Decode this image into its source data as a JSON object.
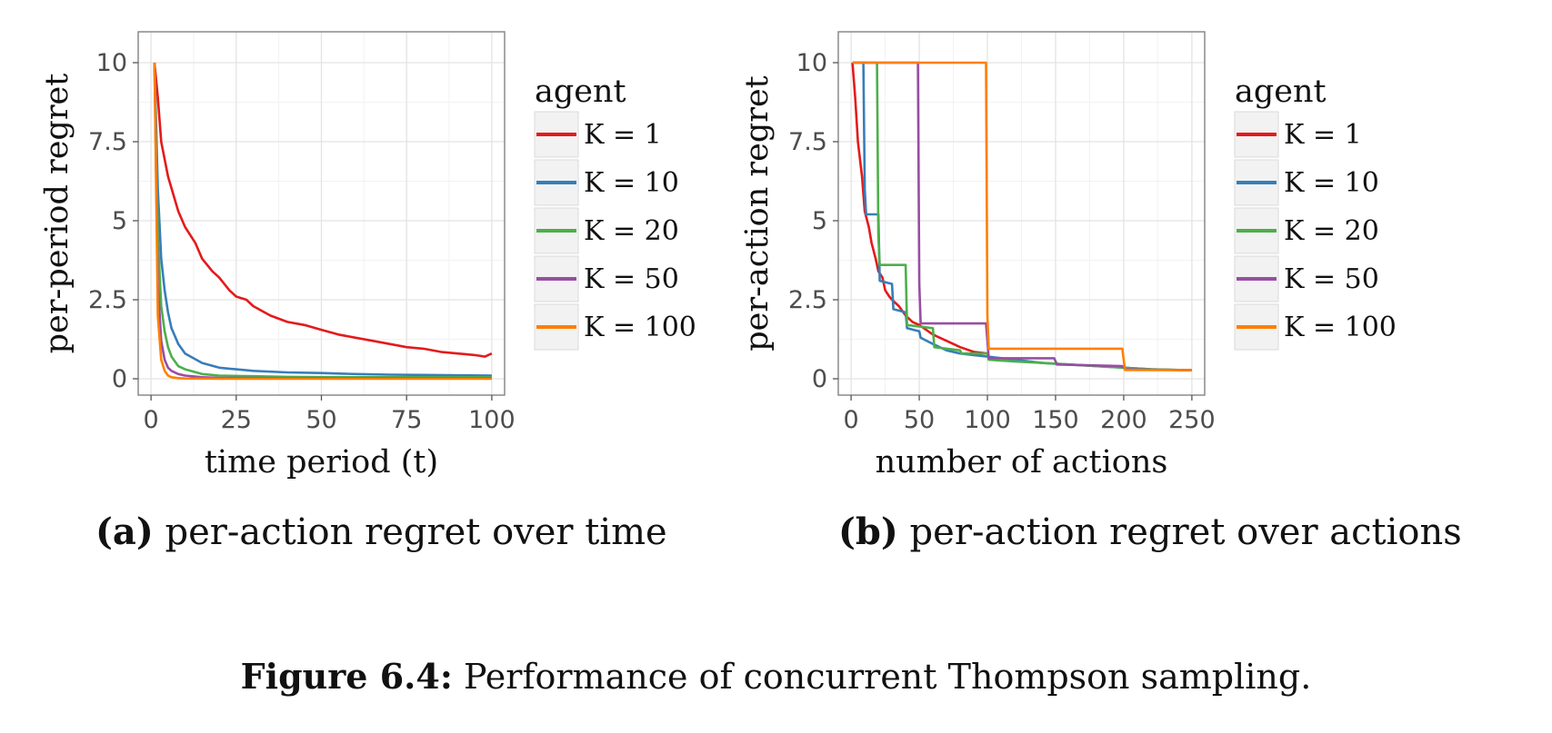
{
  "figure_caption": {
    "label": "Figure 6.4:",
    "text": " Performance of concurrent Thompson sampling."
  },
  "panels": [
    {
      "label": "(a)",
      "text": " per-action regret over time"
    },
    {
      "label": "(b)",
      "text": " per-action regret over actions"
    }
  ],
  "chart_data": [
    {
      "type": "line",
      "xlabel": "time period (t)",
      "ylabel": "per-period regret",
      "xlim": [
        0,
        100
      ],
      "ylim": [
        0,
        10
      ],
      "xticks": [
        "0",
        "25",
        "50",
        "75",
        "100"
      ],
      "yticks": [
        "0",
        "2.5",
        "5",
        "7.5",
        "10"
      ],
      "grid": true,
      "legend": {
        "title": "agent",
        "position": "right"
      },
      "series": [
        {
          "name": "K = 1",
          "color": "#e41a1c",
          "x": [
            1,
            2,
            3,
            5,
            8,
            10,
            13,
            15,
            18,
            20,
            23,
            25,
            28,
            30,
            35,
            40,
            45,
            50,
            55,
            60,
            65,
            70,
            75,
            80,
            85,
            90,
            95,
            98,
            100
          ],
          "y": [
            10.0,
            8.9,
            7.5,
            6.4,
            5.3,
            4.8,
            4.3,
            3.8,
            3.4,
            3.2,
            2.8,
            2.6,
            2.5,
            2.3,
            2.0,
            1.8,
            1.7,
            1.55,
            1.4,
            1.3,
            1.2,
            1.1,
            1.0,
            0.95,
            0.85,
            0.8,
            0.75,
            0.7,
            0.8
          ]
        },
        {
          "name": "K = 10",
          "color": "#377eb8",
          "x": [
            1,
            2,
            3,
            4,
            5,
            6,
            8,
            10,
            15,
            20,
            25,
            30,
            40,
            50,
            60,
            70,
            80,
            90,
            100
          ],
          "y": [
            10.0,
            6.0,
            3.8,
            2.8,
            2.1,
            1.6,
            1.1,
            0.8,
            0.5,
            0.35,
            0.3,
            0.25,
            0.2,
            0.18,
            0.15,
            0.13,
            0.12,
            0.11,
            0.1
          ]
        },
        {
          "name": "K = 20",
          "color": "#4daf4a",
          "x": [
            1,
            2,
            3,
            4,
            5,
            6,
            8,
            10,
            15,
            20,
            30,
            40,
            60,
            80,
            100
          ],
          "y": [
            10.0,
            4.5,
            2.3,
            1.5,
            1.0,
            0.7,
            0.4,
            0.3,
            0.15,
            0.1,
            0.08,
            0.06,
            0.05,
            0.05,
            0.05
          ]
        },
        {
          "name": "K = 50",
          "color": "#984ea3",
          "x": [
            1,
            2,
            3,
            4,
            5,
            6,
            8,
            10,
            15,
            20,
            40,
            60,
            80,
            100
          ],
          "y": [
            10.0,
            3.0,
            1.2,
            0.6,
            0.35,
            0.25,
            0.15,
            0.1,
            0.05,
            0.03,
            0.02,
            0.02,
            0.02,
            0.02
          ]
        },
        {
          "name": "K = 100",
          "color": "#ff7f00",
          "x": [
            1,
            2,
            3,
            4,
            5,
            6,
            8,
            10,
            20,
            50,
            100
          ],
          "y": [
            10.0,
            2.0,
            0.6,
            0.25,
            0.1,
            0.05,
            0.02,
            0.01,
            0.0,
            0.0,
            0.0
          ]
        }
      ]
    },
    {
      "type": "line",
      "xlabel": "number of actions",
      "ylabel": "per-action regret",
      "xlim": [
        0,
        250
      ],
      "ylim": [
        0,
        10
      ],
      "xticks": [
        "0",
        "50",
        "100",
        "150",
        "200",
        "250"
      ],
      "yticks": [
        "0",
        "2.5",
        "5",
        "7.5",
        "10"
      ],
      "grid": true,
      "legend": {
        "title": "agent",
        "position": "right"
      },
      "series": [
        {
          "name": "K = 1",
          "color": "#e41a1c",
          "x": [
            1,
            3,
            5,
            8,
            10,
            13,
            15,
            18,
            20,
            23,
            25,
            28,
            30,
            35,
            40,
            45,
            50,
            55,
            60,
            65,
            70,
            80,
            90,
            100
          ],
          "y": [
            10.0,
            8.9,
            7.5,
            6.4,
            5.3,
            4.8,
            4.3,
            3.8,
            3.4,
            3.2,
            2.8,
            2.6,
            2.5,
            2.3,
            2.0,
            1.8,
            1.7,
            1.55,
            1.4,
            1.3,
            1.2,
            1.0,
            0.85,
            0.8
          ]
        },
        {
          "name": "K = 10",
          "color": "#377eb8",
          "x": [
            1,
            9,
            10,
            11,
            20,
            21,
            30,
            31,
            40,
            41,
            50,
            51,
            60,
            70,
            80,
            90,
            100,
            120,
            140,
            160,
            180,
            200,
            220,
            240,
            250
          ],
          "y": [
            10.0,
            10.0,
            6.0,
            5.2,
            5.2,
            3.1,
            3.0,
            2.2,
            2.1,
            1.6,
            1.5,
            1.3,
            1.1,
            0.9,
            0.8,
            0.75,
            0.7,
            0.6,
            0.5,
            0.45,
            0.4,
            0.35,
            0.3,
            0.28,
            0.27
          ]
        },
        {
          "name": "K = 20",
          "color": "#4daf4a",
          "x": [
            1,
            19,
            20,
            21,
            40,
            41,
            60,
            61,
            80,
            81,
            100,
            101,
            120,
            140,
            160,
            180,
            200,
            220,
            240,
            250
          ],
          "y": [
            10.0,
            10.0,
            4.5,
            3.6,
            3.6,
            1.7,
            1.6,
            1.0,
            0.9,
            0.8,
            0.8,
            0.6,
            0.55,
            0.5,
            0.45,
            0.4,
            0.35,
            0.3,
            0.28,
            0.27
          ]
        },
        {
          "name": "K = 50",
          "color": "#984ea3",
          "x": [
            1,
            49,
            50,
            51,
            99,
            100,
            101,
            149,
            150,
            151,
            199,
            200,
            201,
            250
          ],
          "y": [
            10.0,
            10.0,
            3.0,
            1.75,
            1.75,
            1.2,
            0.65,
            0.65,
            0.55,
            0.45,
            0.4,
            0.35,
            0.3,
            0.27
          ]
        },
        {
          "name": "K = 100",
          "color": "#ff7f00",
          "x": [
            1,
            99,
            100,
            101,
            199,
            200,
            201,
            250
          ],
          "y": [
            10.0,
            10.0,
            2.0,
            0.95,
            0.95,
            0.6,
            0.28,
            0.27
          ]
        }
      ]
    }
  ]
}
